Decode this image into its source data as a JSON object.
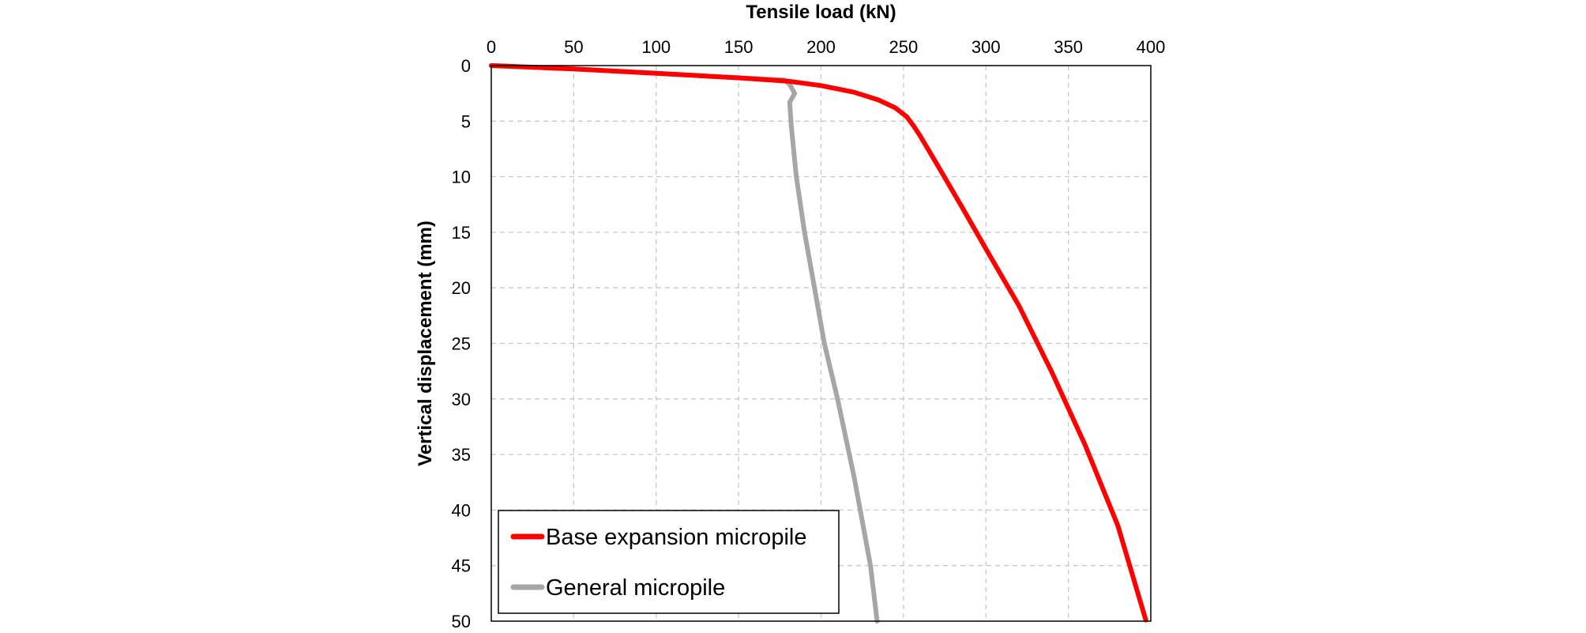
{
  "chart_data": {
    "type": "line",
    "title": "",
    "xlabel": "Tensile load (kN)",
    "ylabel": "Vertical displacement (mm)",
    "xlim": [
      0,
      400
    ],
    "ylim": [
      0,
      50
    ],
    "x_axis_position": "top",
    "y_axis_inverted": true,
    "x_ticks": [
      0,
      50,
      100,
      150,
      200,
      250,
      300,
      350,
      400
    ],
    "y_ticks": [
      0,
      5,
      10,
      15,
      20,
      25,
      30,
      35,
      40,
      45,
      50
    ],
    "x_tick_labels": [
      "0",
      "50",
      "100",
      "150",
      "200",
      "250",
      "300",
      "350",
      "400"
    ],
    "y_tick_labels": [
      "0",
      "5",
      "10",
      "15",
      "20",
      "25",
      "30",
      "35",
      "40",
      "45",
      "50"
    ],
    "grid": true,
    "legend_position": "bottom-left",
    "series": [
      {
        "name": "Base expansion micropile",
        "color": "#ff0000",
        "x": [
          0,
          50,
          100,
          150,
          180,
          200,
          220,
          235,
          245,
          252,
          256,
          260,
          270,
          285,
          300,
          320,
          340,
          360,
          380,
          397
        ],
        "y": [
          0,
          0.3,
          0.7,
          1.1,
          1.4,
          1.8,
          2.4,
          3.1,
          3.8,
          4.6,
          5.4,
          6.3,
          8.8,
          12.6,
          16.5,
          21.6,
          27.6,
          34.1,
          41.4,
          49.9
        ]
      },
      {
        "name": "General micropile",
        "color": "#a6a6a6",
        "x": [
          0,
          50,
          100,
          150,
          178,
          181,
          184,
          181,
          182,
          185,
          190,
          196,
          202,
          210,
          220,
          230,
          234
        ],
        "y": [
          0,
          0.3,
          0.7,
          1.1,
          1.3,
          1.7,
          2.5,
          3.3,
          5.5,
          10,
          15,
          20,
          25,
          30,
          37,
          45,
          50
        ]
      }
    ]
  }
}
